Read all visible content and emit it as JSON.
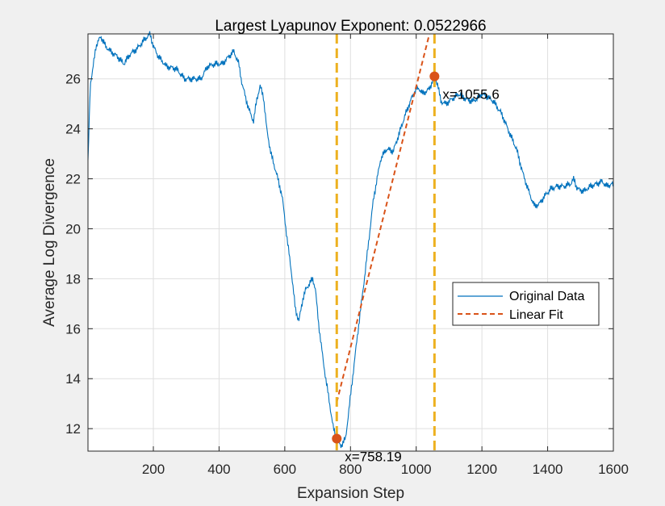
{
  "chart_data": {
    "type": "line",
    "title": "Largest Lyapunov Exponent: 0.0522966",
    "xlabel": "Expansion Step",
    "ylabel": "Average Log Divergence",
    "xlim": [
      1,
      1600
    ],
    "ylim": [
      11.1,
      27.8
    ],
    "x_ticks": [
      200,
      400,
      600,
      800,
      1000,
      1200,
      1400,
      1600
    ],
    "y_ticks": [
      12,
      14,
      16,
      18,
      20,
      22,
      24,
      26
    ],
    "grid": true,
    "legend_position": "right-middle",
    "series": [
      {
        "name": "Original Data",
        "color": "#0072BD",
        "noise_amplitude": 0.15,
        "points": [
          [
            1,
            22.6
          ],
          [
            8,
            25.8
          ],
          [
            15,
            26.3
          ],
          [
            25,
            27.3
          ],
          [
            40,
            27.7
          ],
          [
            55,
            27.3
          ],
          [
            70,
            27.1
          ],
          [
            90,
            26.9
          ],
          [
            110,
            26.6
          ],
          [
            130,
            27.0
          ],
          [
            150,
            27.2
          ],
          [
            175,
            27.6
          ],
          [
            190,
            27.8
          ],
          [
            200,
            27.3
          ],
          [
            215,
            26.9
          ],
          [
            240,
            26.5
          ],
          [
            270,
            26.4
          ],
          [
            295,
            26.0
          ],
          [
            320,
            26.0
          ],
          [
            345,
            26.0
          ],
          [
            365,
            26.5
          ],
          [
            390,
            26.6
          ],
          [
            410,
            26.6
          ],
          [
            430,
            26.9
          ],
          [
            445,
            27.1
          ],
          [
            460,
            26.6
          ],
          [
            470,
            25.8
          ],
          [
            490,
            24.8
          ],
          [
            505,
            24.3
          ],
          [
            515,
            25.2
          ],
          [
            525,
            25.7
          ],
          [
            535,
            25.3
          ],
          [
            545,
            24.0
          ],
          [
            558,
            23.0
          ],
          [
            575,
            22.2
          ],
          [
            592,
            21.3
          ],
          [
            608,
            19.5
          ],
          [
            620,
            18.3
          ],
          [
            632,
            16.8
          ],
          [
            643,
            16.3
          ],
          [
            655,
            17.2
          ],
          [
            665,
            17.6
          ],
          [
            675,
            17.8
          ],
          [
            685,
            18.0
          ],
          [
            693,
            17.6
          ],
          [
            703,
            16.2
          ],
          [
            718,
            14.6
          ],
          [
            733,
            13.3
          ],
          [
            748,
            12.0
          ],
          [
            758,
            11.6
          ],
          [
            770,
            11.3
          ],
          [
            785,
            11.6
          ],
          [
            800,
            13.3
          ],
          [
            820,
            15.6
          ],
          [
            845,
            18.3
          ],
          [
            870,
            21.2
          ],
          [
            892,
            22.8
          ],
          [
            910,
            23.2
          ],
          [
            930,
            23.1
          ],
          [
            948,
            23.8
          ],
          [
            965,
            24.5
          ],
          [
            985,
            25.2
          ],
          [
            1000,
            25.6
          ],
          [
            1010,
            25.6
          ],
          [
            1020,
            25.4
          ],
          [
            1040,
            25.6
          ],
          [
            1055,
            26.1
          ],
          [
            1065,
            25.8
          ],
          [
            1075,
            25.1
          ],
          [
            1090,
            25.0
          ],
          [
            1110,
            25.2
          ],
          [
            1130,
            25.4
          ],
          [
            1150,
            25.2
          ],
          [
            1170,
            25.1
          ],
          [
            1185,
            25.2
          ],
          [
            1200,
            25.4
          ],
          [
            1215,
            25.3
          ],
          [
            1235,
            25.1
          ],
          [
            1260,
            24.6
          ],
          [
            1285,
            23.8
          ],
          [
            1305,
            23.2
          ],
          [
            1325,
            22.2
          ],
          [
            1345,
            21.4
          ],
          [
            1360,
            20.9
          ],
          [
            1375,
            21.0
          ],
          [
            1390,
            21.3
          ],
          [
            1410,
            21.6
          ],
          [
            1430,
            21.7
          ],
          [
            1450,
            21.7
          ],
          [
            1470,
            21.8
          ],
          [
            1480,
            22.0
          ],
          [
            1490,
            21.6
          ],
          [
            1510,
            21.5
          ],
          [
            1530,
            21.7
          ],
          [
            1550,
            21.8
          ],
          [
            1565,
            21.9
          ],
          [
            1580,
            21.7
          ],
          [
            1595,
            21.8
          ],
          [
            1600,
            21.7
          ]
        ]
      },
      {
        "name": "Linear Fit",
        "color": "#D95319",
        "dashed": true,
        "points": [
          [
            758.19,
            13.06
          ],
          [
            1055.6,
            28.6
          ]
        ]
      }
    ],
    "vertical_lines": [
      {
        "x": 758.19,
        "color": "#EDB120"
      },
      {
        "x": 1055.6,
        "color": "#EDB120"
      }
    ],
    "markers": [
      {
        "x": 758.19,
        "y": 11.6,
        "label": "x=758.19",
        "color": "#D95319"
      },
      {
        "x": 1055.6,
        "y": 26.1,
        "label": "x=1055.6",
        "color": "#D95319"
      }
    ]
  }
}
